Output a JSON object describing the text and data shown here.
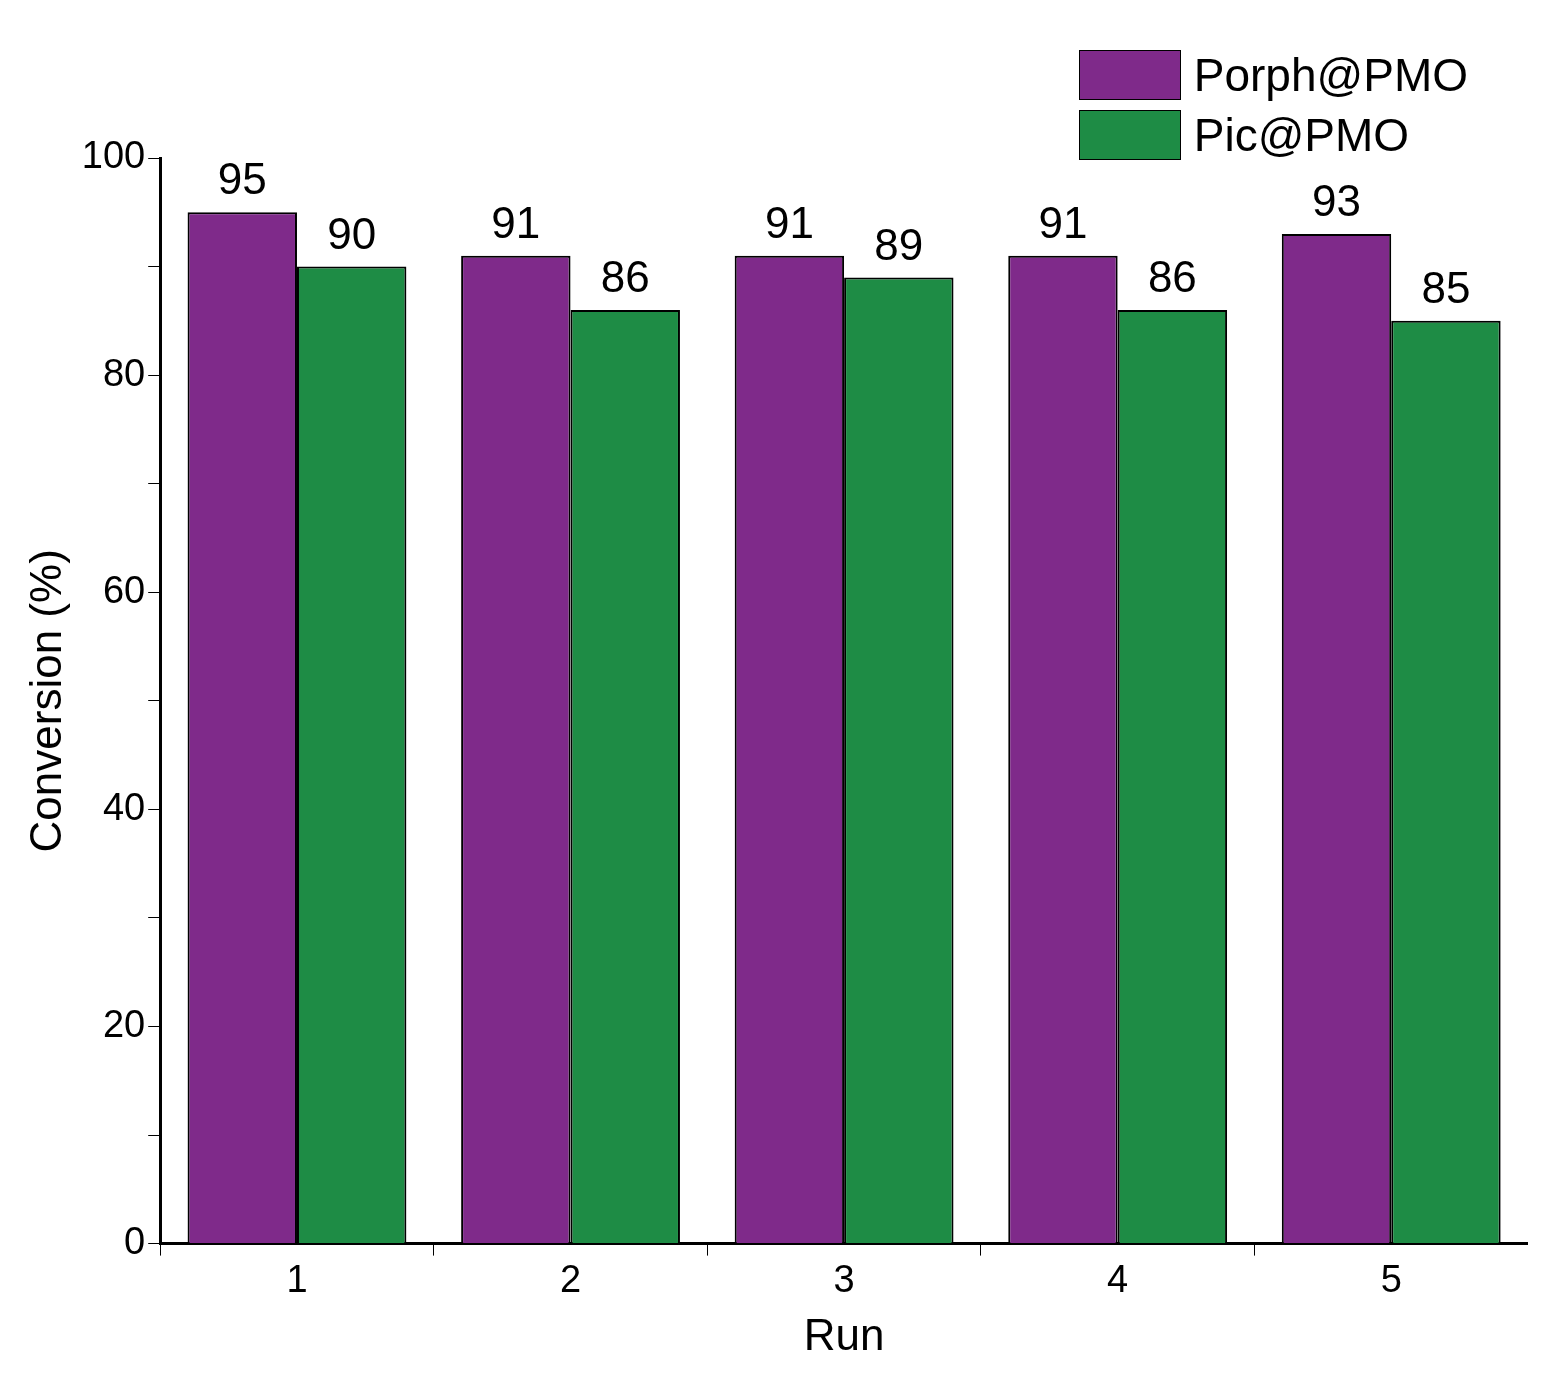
{
  "chart_data": {
    "type": "bar",
    "xlabel": "Run",
    "ylabel": "Conversion (%)",
    "categories": [
      "1",
      "2",
      "3",
      "4",
      "5"
    ],
    "series": [
      {
        "name": "Porph@PMO",
        "color": "#7f2a8a",
        "values": [
          95,
          91,
          91,
          91,
          93
        ]
      },
      {
        "name": "Pic@PMO",
        "color": "#1e8c45",
        "values": [
          90,
          86,
          89,
          86,
          85
        ]
      }
    ],
    "ylim": [
      0,
      100
    ],
    "yticks": [
      0,
      {
        "value": 10,
        "label": null
      },
      20,
      {
        "value": 30,
        "label": null
      },
      40,
      {
        "value": 50,
        "label": null
      },
      60,
      {
        "value": 70,
        "label": null
      },
      80,
      {
        "value": 90,
        "label": null
      },
      100
    ],
    "data_labels": true,
    "legend": "top right",
    "grid": false
  }
}
